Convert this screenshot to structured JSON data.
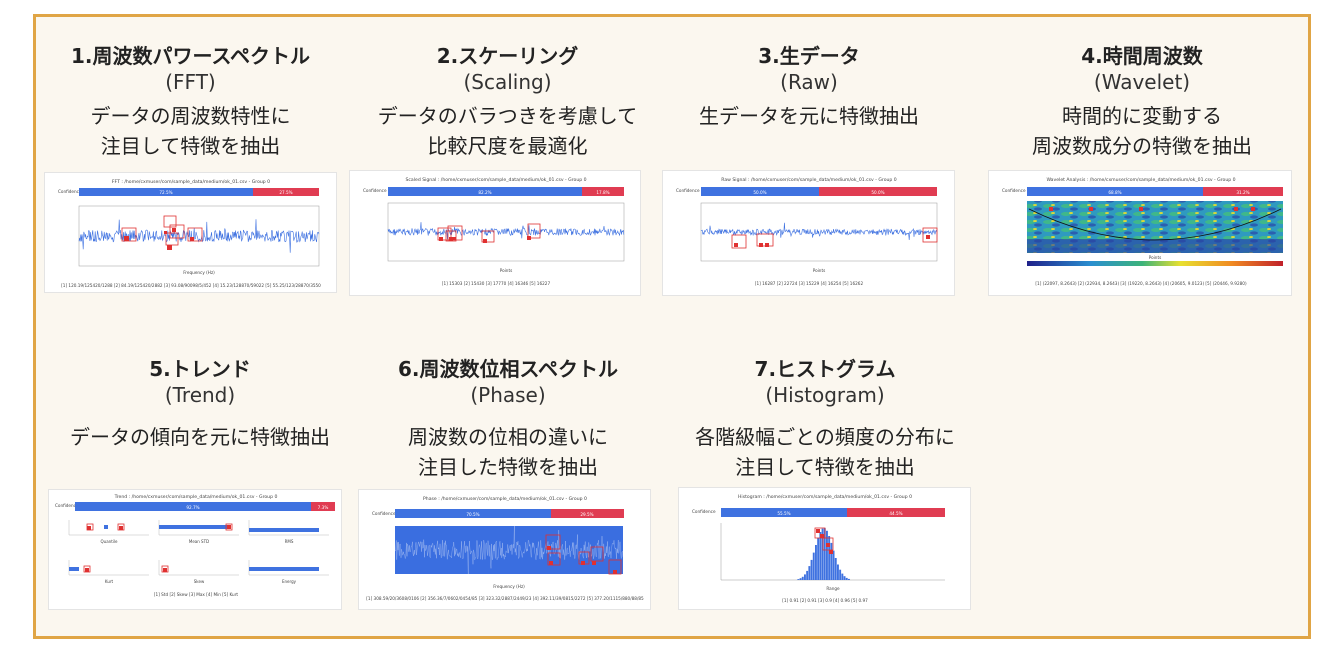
{
  "colors": {
    "frame_border": "#e0a545",
    "frame_bg": "#fbf7ef",
    "bar_blue": "#3f72e0",
    "bar_red": "#e03c52",
    "signal_blue": "#3a6ee0",
    "marker_red": "#e03030"
  },
  "items": [
    {
      "title": "1.周波数パワースペクトル",
      "subtitle": "(FFT)",
      "desc": "データの周波数特性に\n注目して特徴を抽出",
      "thumb": {
        "header": "FFT : /home/cxmuser/com/sample_data/medium/ok_01.csv - Group 0",
        "left_label": "Confidence",
        "blue_pct": "72.5%",
        "red_pct": "27.5%",
        "xlabel": "Frequency (Hz)",
        "footer": "[1] 120.19/125420/1288  [2] 84.19/125420/2882  [3] 93.08/90098/5/452  [4] 15.23/128870/59022  [5] 55.25/123/28870/3550"
      }
    },
    {
      "title": "2.スケーリング",
      "subtitle": "(Scaling)",
      "desc": "データのバラつきを考慮して\n比較尺度を最適化",
      "thumb": {
        "header": "Scaled Signal : /home/cxmuser/com/sample_data/medium/ok_01.csv - Group 0",
        "left_label": "Confidence",
        "blue_pct": "82.2%",
        "red_pct": "17.8%",
        "xlabel": "Points",
        "footer": "[1] 15303  [2] 15430  [3] 17770  [4] 16346  [5] 16227"
      }
    },
    {
      "title": "3.生データ",
      "subtitle": "(Raw)",
      "desc": "生データを元に特徴抽出",
      "thumb": {
        "header": "Raw Signal : /home/cxmuser/com/sample_data/medium/ok_01.csv - Group 0",
        "left_label": "Confidence",
        "blue_pct": "50.0%",
        "red_pct": "50.0%",
        "xlabel": "Points",
        "footer": "[1] 16287  [2] 22724  [3] 15229  [4] 16254  [5] 16262"
      }
    },
    {
      "title": "4.時間周波数",
      "subtitle": "(Wavelet)",
      "desc": "時間的に変動する\n周波数成分の特徴を抽出",
      "thumb": {
        "header": "Wavelet Analysis : /home/cxmuser/com/sample_data/medium/ok_01.csv - Group 0",
        "left_label": "Confidence",
        "blue_pct": "68.8%",
        "red_pct": "31.2%",
        "xlabel": "Points",
        "footer": "[1] (22097, 8.2643)  [2] (22934, 8.2643)  [3] (19220, 8.2643)  [4] (20605, 9.0123)  [5] (20446, 9.9280)"
      }
    },
    {
      "title": "5.トレンド",
      "subtitle": "(Trend)",
      "desc": "データの傾向を元に特徴抽出",
      "thumb": {
        "header": "Trend : /home/cxmuser/com/sample_data/medium/ok_01.csv - Group 0",
        "left_label": "Confidence",
        "blue_pct": "92.7%",
        "red_pct": "7.3%",
        "panel_labels": [
          "Quantile",
          "Mean STD",
          "RMS",
          "Kurt",
          "Skew",
          "Energy"
        ],
        "footer": "[1] Std  [2] Skew  [3] Max  [4] Min  [5] Kurt"
      }
    },
    {
      "title": "6.周波数位相スペクトル",
      "subtitle": "(Phase)",
      "desc": "周波数の位相の違いに\n注目した特徴を抽出",
      "thumb": {
        "header": "Phase : /home/cxmuser/com/sample_data/medium/ok_01.csv - Group 0",
        "left_label": "Confidence",
        "blue_pct": "70.5%",
        "red_pct": "29.5%",
        "xlabel": "Frequency (Hz)",
        "footer": "[1] 308.59/20/3608/0106  [2] 356.36/7/0602/0454/85  [3] 323.32/2887/2449/23  [4] 392.11/39/0815/2272  [5] 377.20/1115/880/88/85"
      }
    },
    {
      "title": "7.ヒストグラム",
      "subtitle": "(Histogram)",
      "desc": "各階級幅ごとの頻度の分布に\n注目して特徴を抽出",
      "thumb": {
        "header": "Histogram : /home/cxmuser/com/sample_data/medium/ok_01.csv - Group 0",
        "left_label": "Confidence",
        "blue_pct": "55.5%",
        "red_pct": "44.5%",
        "xlabel": "Range",
        "footer": "[1] 0.91  [2] 0.91  [3] 0.9  [4] 0.96  [5] 0.97"
      }
    }
  ]
}
